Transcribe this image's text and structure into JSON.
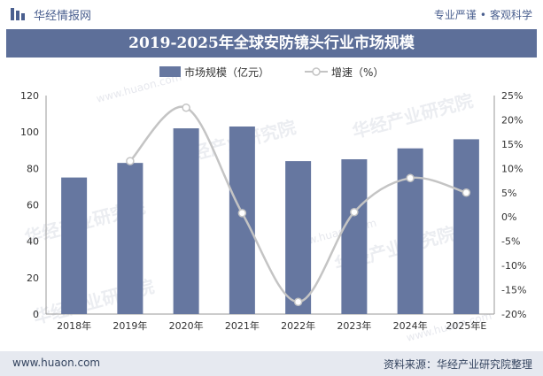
{
  "header": {
    "brand": "华经情报网",
    "slogan_left": "专业严谨",
    "slogan_sep": "•",
    "slogan_right": "客观科学"
  },
  "title": "2019-2025年全球安防镜头行业市场规模",
  "footer": {
    "url": "www.huaon.com",
    "source": "资料来源：华经产业研究院整理"
  },
  "watermark": {
    "text": "华经产业研究院",
    "url": "www.huaon.com"
  },
  "colors": {
    "title_bg": "#5d6f99",
    "bar": "#6677a0",
    "line": "#c4c4c4",
    "footer_bg": "#e6e9f0"
  },
  "chart_data": {
    "type": "bar+line",
    "categories": [
      "2018年",
      "2019年",
      "2020年",
      "2021年",
      "2022年",
      "2023年",
      "2024年",
      "2025年E"
    ],
    "series": [
      {
        "name": "市场规模（亿元）",
        "type": "bar",
        "axis": "left",
        "values": [
          75,
          83,
          102,
          103,
          84,
          85,
          91,
          96
        ]
      },
      {
        "name": "增速（%）",
        "type": "line",
        "axis": "right",
        "values": [
          null,
          11.5,
          22.5,
          0.8,
          -17.5,
          1.0,
          8.0,
          5.0
        ]
      }
    ],
    "left_axis": {
      "min": 0,
      "max": 120,
      "step": 20,
      "ticks": [
        "0",
        "20",
        "40",
        "60",
        "80",
        "100",
        "120"
      ]
    },
    "right_axis": {
      "min": -20,
      "max": 25,
      "step": 5,
      "ticks": [
        "-20%",
        "-15%",
        "-10%",
        "-5%",
        "0%",
        "5%",
        "10%",
        "15%",
        "20%",
        "25%"
      ]
    },
    "legend_position": "top-center",
    "grid": false
  }
}
